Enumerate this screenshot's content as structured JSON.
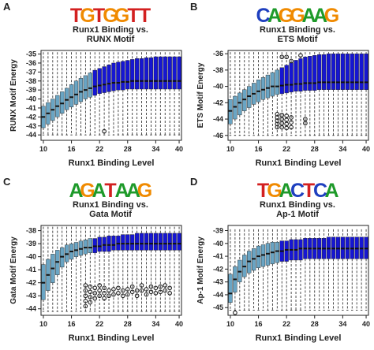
{
  "chart_data": [
    {
      "type": "box",
      "panel_label": "A",
      "motif_logo": [
        "T",
        "G",
        "T",
        "G",
        "G",
        "T",
        "T"
      ],
      "logo_colors": [
        "#d32020",
        "#f08a00",
        "#d32020",
        "#f08a00",
        "#f08a00",
        "#d32020",
        "#d32020"
      ],
      "title": [
        "Runx1 Binding vs.",
        "RUNX Motif"
      ],
      "xlabel": "Runx1 Binding Level",
      "ylabel": "RUNX Motif Energy",
      "x_ticks": [
        "10",
        "16",
        "22",
        "28",
        "34",
        "40"
      ],
      "y_ticks": [
        -35,
        -36,
        -37,
        -38,
        -39,
        -40,
        -41,
        -42,
        -43,
        -44
      ],
      "ylim": [
        -44.6,
        -34.6
      ],
      "box_colors": {
        "low": "#6aa5c4",
        "high": "#1616d2"
      },
      "light_box_count": 11,
      "medians": [
        -42.0,
        -41.6,
        -41.2,
        -40.8,
        -40.5,
        -40.1,
        -39.8,
        -39.5,
        -39.2,
        -39.0,
        -38.8,
        -38.6,
        -38.5,
        -38.4,
        -38.3,
        -38.2,
        -38.2,
        -38.1,
        -38.1,
        -38.0,
        -38.0,
        -38.0,
        -38.0,
        -38.0,
        -38.0,
        -38.0,
        -38.0,
        -38.0,
        -38.0,
        -38.0
      ],
      "q1": [
        -43.2,
        -42.8,
        -42.4,
        -42.0,
        -41.6,
        -41.2,
        -40.9,
        -40.6,
        -40.3,
        -40.0,
        -39.8,
        -39.6,
        -39.4,
        -39.3,
        -39.2,
        -39.1,
        -39.0,
        -39.0,
        -38.9,
        -38.9,
        -38.9,
        -38.9,
        -38.9,
        -38.9,
        -38.9,
        -38.9,
        -38.9,
        -38.9,
        -38.9,
        -38.9
      ],
      "q3": [
        -40.8,
        -40.4,
        -40.0,
        -39.6,
        -39.2,
        -38.8,
        -38.4,
        -38.0,
        -37.7,
        -37.4,
        -37.1,
        -36.8,
        -36.6,
        -36.4,
        -36.2,
        -36.0,
        -35.9,
        -35.8,
        -35.7,
        -35.6,
        -35.5,
        -35.5,
        -35.4,
        -35.4,
        -35.3,
        -35.3,
        -35.3,
        -35.3,
        -35.3,
        -35.3
      ],
      "whisker_low": -44.0,
      "whisker_high": -34.8,
      "outliers": [
        {
          "box": 14,
          "y": -43.6
        }
      ]
    },
    {
      "type": "box",
      "panel_label": "B",
      "motif_logo": [
        "C",
        "A",
        "G",
        "G",
        "A",
        "A",
        "G"
      ],
      "logo_colors": [
        "#1e3fbf",
        "#1e9a2a",
        "#f08a00",
        "#f08a00",
        "#1e9a2a",
        "#1e9a2a",
        "#f08a00"
      ],
      "title": [
        "Runx1 Binding vs.",
        "ETS Motif"
      ],
      "xlabel": "Runx1 Binding Level",
      "ylabel": "ETS Motif Energy",
      "x_ticks": [
        "10",
        "16",
        "22",
        "28",
        "34",
        "40"
      ],
      "y_ticks": [
        -36,
        -38,
        -40,
        -42,
        -44,
        -46
      ],
      "ylim": [
        -46.6,
        -35.6
      ],
      "box_colors": {
        "low": "#6aa5c4",
        "high": "#1616d2"
      },
      "light_box_count": 11,
      "medians": [
        -43.0,
        -42.5,
        -42.0,
        -41.6,
        -41.2,
        -40.9,
        -40.6,
        -40.4,
        -40.2,
        -40.0,
        -40.0,
        -39.9,
        -39.8,
        -39.8,
        -39.7,
        -39.7,
        -39.6,
        -39.6,
        -39.6,
        -39.5,
        -39.5,
        -39.5,
        -39.5,
        -39.5,
        -39.5,
        -39.5,
        -39.5,
        -39.5,
        -39.5,
        -39.5
      ],
      "q1": [
        -44.6,
        -44.0,
        -43.5,
        -43.0,
        -42.6,
        -42.2,
        -41.9,
        -41.6,
        -41.4,
        -41.2,
        -41.0,
        -40.9,
        -40.8,
        -40.7,
        -40.6,
        -40.6,
        -40.5,
        -40.5,
        -40.5,
        -40.4,
        -40.4,
        -40.4,
        -40.4,
        -40.4,
        -40.4,
        -40.4,
        -40.4,
        -40.4,
        -40.4,
        -40.4
      ],
      "q3": [
        -41.6,
        -41.2,
        -40.8,
        -40.4,
        -40.0,
        -39.6,
        -39.2,
        -38.9,
        -38.6,
        -38.3,
        -38.0,
        -37.7,
        -37.4,
        -37.1,
        -36.8,
        -36.6,
        -36.4,
        -36.3,
        -36.2,
        -36.1,
        -36.1,
        -36.0,
        -36.0,
        -36.0,
        -36.0,
        -36.0,
        -36.0,
        -36.0,
        -36.0,
        -36.0
      ],
      "whisker_low": -46.0,
      "whisker_high": -35.8,
      "outliers": [
        {
          "box": 11,
          "y": -43.4
        },
        {
          "box": 11,
          "y": -43.8
        },
        {
          "box": 11,
          "y": -44.2
        },
        {
          "box": 11,
          "y": -44.6
        },
        {
          "box": 11,
          "y": -45.0
        },
        {
          "box": 12,
          "y": -43.5
        },
        {
          "box": 12,
          "y": -44.0
        },
        {
          "box": 12,
          "y": -44.5
        },
        {
          "box": 12,
          "y": -45.0
        },
        {
          "box": 13,
          "y": -43.6
        },
        {
          "box": 13,
          "y": -44.1
        },
        {
          "box": 13,
          "y": -44.6
        },
        {
          "box": 13,
          "y": -45.1
        },
        {
          "box": 14,
          "y": -43.8
        },
        {
          "box": 14,
          "y": -44.4
        },
        {
          "box": 14,
          "y": -45.0
        },
        {
          "box": 17,
          "y": -44.0
        },
        {
          "box": 17,
          "y": -44.5
        },
        {
          "box": 12,
          "y": -36.4
        },
        {
          "box": 13,
          "y": -36.4
        },
        {
          "box": 14,
          "y": -36.9
        },
        {
          "box": 16,
          "y": -36.2
        }
      ]
    },
    {
      "type": "box",
      "panel_label": "C",
      "motif_logo": [
        "A",
        "G",
        "A",
        "T",
        "A",
        "A",
        "G"
      ],
      "logo_colors": [
        "#1e9a2a",
        "#f08a00",
        "#1e9a2a",
        "#d32020",
        "#1e9a2a",
        "#1e9a2a",
        "#f08a00"
      ],
      "title": [
        "Runx1 Binding vs.",
        "Gata Motif"
      ],
      "xlabel": "Runx1 Binding Level",
      "ylabel": "Gata Motif Energy",
      "x_ticks": [
        "10",
        "16",
        "22",
        "28",
        "34",
        "40"
      ],
      "y_ticks": [
        -38,
        -39,
        -40,
        -41,
        -42,
        -43,
        -44
      ],
      "ylim": [
        -44.5,
        -37.6
      ],
      "box_colors": {
        "low": "#6aa5c4",
        "high": "#1616d2"
      },
      "light_box_count": 11,
      "medians": [
        -42.0,
        -41.4,
        -40.9,
        -40.4,
        -40.0,
        -39.8,
        -39.6,
        -39.5,
        -39.4,
        -39.3,
        -39.3,
        -39.2,
        -39.2,
        -39.1,
        -39.1,
        -39.1,
        -39.0,
        -39.0,
        -39.0,
        -39.0,
        -39.0,
        -39.0,
        -39.0,
        -39.0,
        -39.0,
        -39.0,
        -39.0,
        -39.0,
        -39.0,
        -39.0
      ],
      "q1": [
        -43.3,
        -42.6,
        -42.0,
        -41.4,
        -40.8,
        -40.4,
        -40.2,
        -40.0,
        -39.9,
        -39.8,
        -39.7,
        -39.7,
        -39.6,
        -39.6,
        -39.6,
        -39.5,
        -39.5,
        -39.5,
        -39.5,
        -39.5,
        -39.5,
        -39.5,
        -39.5,
        -39.5,
        -39.5,
        -39.5,
        -39.5,
        -39.5,
        -39.5,
        -39.5
      ],
      "q3": [
        -40.6,
        -40.2,
        -39.8,
        -39.5,
        -39.3,
        -39.1,
        -39.0,
        -38.9,
        -38.8,
        -38.7,
        -38.6,
        -38.6,
        -38.5,
        -38.5,
        -38.4,
        -38.4,
        -38.4,
        -38.3,
        -38.3,
        -38.3,
        -38.2,
        -38.2,
        -38.2,
        -38.2,
        -38.2,
        -38.2,
        -38.2,
        -38.2,
        -38.2,
        -38.2
      ],
      "whisker_low": -44.2,
      "whisker_high": -37.7,
      "outliers": [
        {
          "box": 10,
          "y": -42.2
        },
        {
          "box": 10,
          "y": -42.6
        },
        {
          "box": 10,
          "y": -43.0
        },
        {
          "box": 10,
          "y": -43.4
        },
        {
          "box": 10,
          "y": -43.8
        },
        {
          "box": 11,
          "y": -42.3
        },
        {
          "box": 11,
          "y": -42.7
        },
        {
          "box": 11,
          "y": -43.1
        },
        {
          "box": 11,
          "y": -43.5
        },
        {
          "box": 12,
          "y": -42.4
        },
        {
          "box": 12,
          "y": -42.8
        },
        {
          "box": 12,
          "y": -43.2
        },
        {
          "box": 13,
          "y": -42.2
        },
        {
          "box": 13,
          "y": -42.6
        },
        {
          "box": 13,
          "y": -43.0
        },
        {
          "box": 14,
          "y": -42.4
        },
        {
          "box": 14,
          "y": -42.8
        },
        {
          "box": 14,
          "y": -43.2
        },
        {
          "box": 15,
          "y": -42.6
        },
        {
          "box": 15,
          "y": -43.0
        },
        {
          "box": 16,
          "y": -42.5
        },
        {
          "box": 16,
          "y": -42.9
        },
        {
          "box": 17,
          "y": -42.4
        },
        {
          "box": 17,
          "y": -42.8
        },
        {
          "box": 18,
          "y": -42.6
        },
        {
          "box": 18,
          "y": -43.0
        },
        {
          "box": 19,
          "y": -42.5
        },
        {
          "box": 19,
          "y": -42.9
        },
        {
          "box": 20,
          "y": -42.3
        },
        {
          "box": 20,
          "y": -42.7
        },
        {
          "box": 21,
          "y": -42.6
        },
        {
          "box": 21,
          "y": -43.0
        },
        {
          "box": 22,
          "y": -42.2
        },
        {
          "box": 22,
          "y": -42.6
        },
        {
          "box": 23,
          "y": -42.5
        },
        {
          "box": 23,
          "y": -42.9
        },
        {
          "box": 24,
          "y": -42.3
        },
        {
          "box": 24,
          "y": -42.7
        },
        {
          "box": 25,
          "y": -42.4
        },
        {
          "box": 25,
          "y": -42.8
        },
        {
          "box": 26,
          "y": -42.3
        },
        {
          "box": 26,
          "y": -42.7
        },
        {
          "box": 27,
          "y": -42.2
        },
        {
          "box": 27,
          "y": -42.6
        },
        {
          "box": 28,
          "y": -42.4
        },
        {
          "box": 28,
          "y": -42.8
        }
      ]
    },
    {
      "type": "box",
      "panel_label": "D",
      "motif_logo": [
        "T",
        "G",
        "A",
        "C",
        "T",
        "C",
        "A"
      ],
      "logo_colors": [
        "#d32020",
        "#f08a00",
        "#1e9a2a",
        "#1e3fbf",
        "#d32020",
        "#1e3fbf",
        "#1e9a2a"
      ],
      "title": [
        "Runx1 Binding vs.",
        "Ap-1 Motif"
      ],
      "xlabel": "Runx1 Binding Level",
      "ylabel": "Ap-1 Motif Energy",
      "x_ticks": [
        "10",
        "16",
        "22",
        "28",
        "34",
        "40"
      ],
      "y_ticks": [
        -39,
        -40,
        -41,
        -42,
        -43,
        -44,
        -45
      ],
      "ylim": [
        -45.6,
        -38.6
      ],
      "box_colors": {
        "low": "#6aa5c4",
        "high": "#1616d2"
      },
      "light_box_count": 11,
      "medians": [
        -43.9,
        -42.8,
        -42.2,
        -41.8,
        -41.4,
        -41.2,
        -41.0,
        -40.9,
        -40.8,
        -40.7,
        -40.6,
        -40.6,
        -40.5,
        -40.5,
        -40.5,
        -40.4,
        -40.4,
        -40.4,
        -40.4,
        -40.4,
        -40.4,
        -40.4,
        -40.4,
        -40.4,
        -40.4,
        -40.4,
        -40.4,
        -40.4,
        -40.4,
        -40.4
      ],
      "q1": [
        -44.6,
        -43.8,
        -43.0,
        -42.6,
        -42.3,
        -42.1,
        -41.9,
        -41.8,
        -41.7,
        -41.6,
        -41.5,
        -41.4,
        -41.4,
        -41.3,
        -41.3,
        -41.3,
        -41.2,
        -41.2,
        -41.2,
        -41.2,
        -41.2,
        -41.2,
        -41.2,
        -41.2,
        -41.2,
        -41.2,
        -41.2,
        -41.2,
        -41.2,
        -41.2
      ],
      "q3": [
        -42.4,
        -41.8,
        -41.3,
        -40.9,
        -40.6,
        -40.4,
        -40.2,
        -40.1,
        -40.0,
        -39.9,
        -39.9,
        -39.8,
        -39.8,
        -39.7,
        -39.7,
        -39.7,
        -39.6,
        -39.6,
        -39.6,
        -39.6,
        -39.6,
        -39.5,
        -39.5,
        -39.5,
        -39.5,
        -39.5,
        -39.5,
        -39.5,
        -39.5,
        -39.5
      ],
      "whisker_low": -45.2,
      "whisker_high": -38.9,
      "outliers": [
        {
          "box": 2,
          "y": -45.4
        }
      ]
    }
  ]
}
